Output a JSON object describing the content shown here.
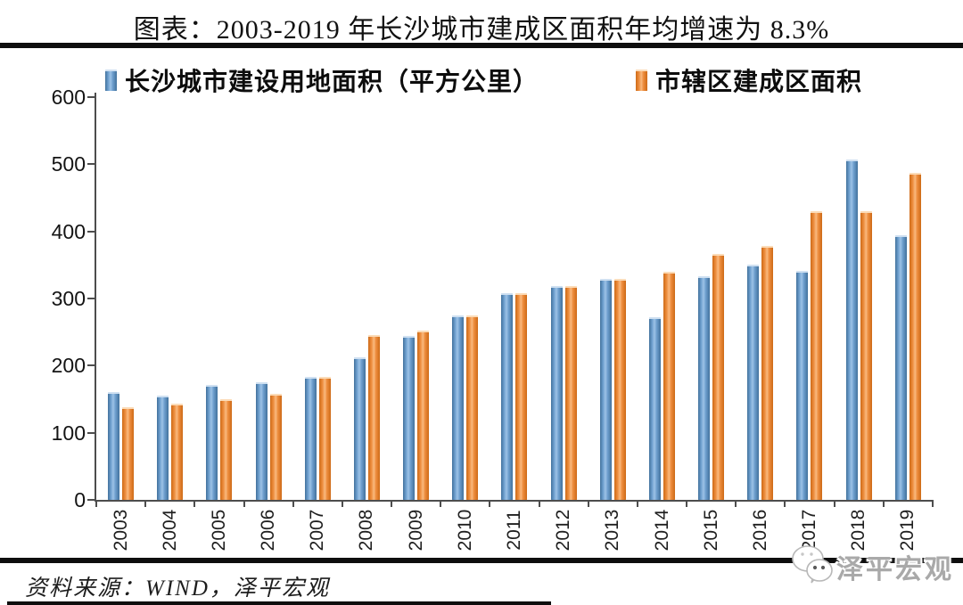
{
  "title": "图表：2003-2019 年长沙城市建成区面积年均增速为 8.3%",
  "legend": {
    "items": [
      {
        "label": "长沙城市建设用地面积（平方公里）",
        "color_key": "blue"
      },
      {
        "label": "市辖区建成区面积",
        "color_key": "orange"
      }
    ]
  },
  "source_note": "资料来源：WIND，泽平宏观",
  "watermark": {
    "text": "泽平宏观",
    "icon": "wechat-icon"
  },
  "colors": {
    "blue": "#4f81bd",
    "blue_light": "#9dc3e6",
    "blue_dark": "#41719c",
    "orange": "#ed7d31",
    "orange_light": "#f9b97e",
    "orange_dark": "#cd6a16",
    "axis": "#4d4d4d",
    "rule": "#0e0e0e",
    "watermark_text": "#a9a9a9"
  },
  "chart_data": {
    "type": "bar",
    "title": "图表：2003-2019 年长沙城市建成区面积年均增速为 8.3%",
    "categories": [
      "2003",
      "2004",
      "2005",
      "2006",
      "2007",
      "2008",
      "2009",
      "2010",
      "2011",
      "2012",
      "2013",
      "2014",
      "2015",
      "2016",
      "2017",
      "2018",
      "2019"
    ],
    "series": [
      {
        "name": "长沙城市建设用地面积（平方公里）",
        "color_key": "blue",
        "values": [
          158,
          153,
          168,
          173,
          181,
          210,
          241,
          272,
          305,
          316,
          326,
          269,
          331,
          348,
          338,
          504,
          392
        ]
      },
      {
        "name": "市辖区建成区面积",
        "color_key": "orange",
        "values": [
          135,
          141,
          148,
          155,
          181,
          243,
          250,
          272,
          305,
          316,
          326,
          337,
          364,
          375,
          427,
          427,
          484
        ]
      }
    ],
    "xlabel": "",
    "ylabel": "",
    "ylim": [
      0,
      600
    ],
    "yticks": [
      0,
      100,
      200,
      300,
      400,
      500,
      600
    ],
    "grid": false,
    "legend_position": "top"
  }
}
